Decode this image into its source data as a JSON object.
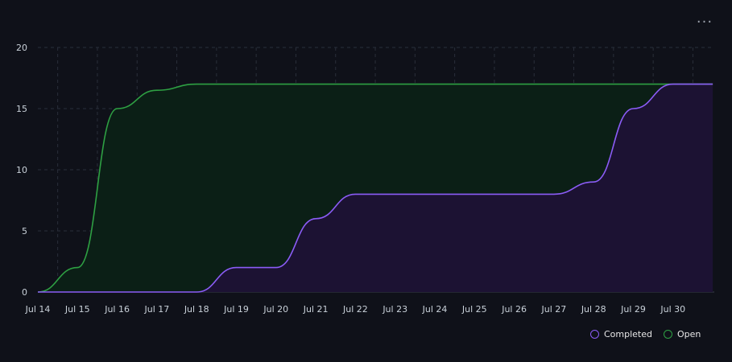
{
  "menu": {
    "more_icon": "ellipsis-icon",
    "more_label": "···"
  },
  "legend": [
    {
      "key": "completed",
      "label": "Completed",
      "color": "#8b5cf6"
    },
    {
      "key": "open",
      "label": "Open",
      "color": "#2ea043"
    }
  ],
  "chart_data": {
    "type": "area",
    "title": "",
    "xlabel": "",
    "ylabel": "",
    "ylim": [
      0,
      20
    ],
    "yticks": [
      0,
      5,
      10,
      15,
      20
    ],
    "grid": true,
    "legend_position": "bottom-right",
    "x_tick_labels": [
      "Jul 14",
      "Jul 15",
      "Jul 16",
      "Jul 17",
      "Jul 18",
      "Jul 19",
      "Jul 20",
      "Jul 21",
      "Jul 22",
      "Jul 23",
      "Jul 24",
      "Jul 25",
      "Jul 26",
      "Jul 27",
      "Jul 28",
      "Jul 29",
      "Jul 30"
    ],
    "x": [
      "Jul 14",
      "Jul 15",
      "Jul 16",
      "Jul 17",
      "Jul 18",
      "Jul 19",
      "Jul 20",
      "Jul 21",
      "Jul 22",
      "Jul 23",
      "Jul 24",
      "Jul 25",
      "Jul 26",
      "Jul 27",
      "Jul 28",
      "Jul 29",
      "Jul 30",
      "Jul 31"
    ],
    "series": [
      {
        "name": "Open",
        "color": "#2ea043",
        "fill": "#0b1f16",
        "values": [
          0,
          2,
          15,
          16.5,
          17,
          17,
          17,
          17,
          17,
          17,
          17,
          17,
          17,
          17,
          17,
          17,
          17,
          17
        ]
      },
      {
        "name": "Completed",
        "color": "#8b5cf6",
        "fill": "#1c1233",
        "values": [
          0,
          0,
          0,
          0,
          0,
          2,
          2,
          6,
          8,
          8,
          8,
          8,
          8,
          8,
          9,
          15,
          17,
          17
        ]
      }
    ]
  }
}
